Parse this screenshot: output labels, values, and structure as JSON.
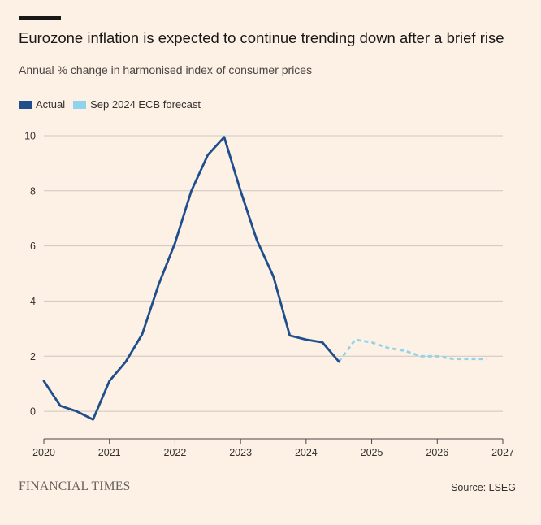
{
  "title": "Eurozone inflation is expected to continue trending down after a brief rise",
  "subtitle": "Annual % change in harmonised index of consumer prices",
  "brand": "FINANCIAL TIMES",
  "source": "Source: LSEG",
  "colors": {
    "background": "#FDF1E5",
    "actual": "#1F4E8C",
    "forecast": "#8FD3EC",
    "grid": "#CEC6BE",
    "axis": "#4A4643"
  },
  "chart_data": {
    "type": "line",
    "title": "Eurozone inflation is expected to continue trending down after a brief rise",
    "subtitle": "Annual % change in harmonised index of consumer prices",
    "xlabel": "",
    "ylabel": "",
    "xlim": [
      2020,
      2027
    ],
    "ylim": [
      -1,
      10.5
    ],
    "x_ticks": [
      2020,
      2021,
      2022,
      2023,
      2024,
      2025,
      2026,
      2027
    ],
    "y_ticks": [
      0,
      2,
      4,
      6,
      8,
      10
    ],
    "grid": true,
    "legend_position": "top-left",
    "series": [
      {
        "name": "Actual",
        "style": "solid",
        "x": [
          2020.0,
          2020.25,
          2020.5,
          2020.75,
          2021.0,
          2021.25,
          2021.5,
          2021.75,
          2022.0,
          2022.25,
          2022.5,
          2022.75,
          2023.0,
          2023.25,
          2023.5,
          2023.75,
          2024.0,
          2024.25,
          2024.5
        ],
        "y": [
          1.1,
          0.2,
          0.0,
          -0.3,
          1.1,
          1.8,
          2.8,
          4.6,
          6.1,
          8.0,
          9.3,
          9.95,
          8.0,
          6.2,
          4.9,
          2.75,
          2.6,
          2.5,
          1.8
        ]
      },
      {
        "name": "Sep 2024 ECB forecast",
        "style": "dashed",
        "x": [
          2024.5,
          2024.75,
          2025.0,
          2025.25,
          2025.5,
          2025.75,
          2026.0,
          2026.25,
          2026.5,
          2026.75
        ],
        "y": [
          1.8,
          2.6,
          2.5,
          2.3,
          2.2,
          2.0,
          2.0,
          1.9,
          1.9,
          1.9
        ]
      }
    ]
  }
}
